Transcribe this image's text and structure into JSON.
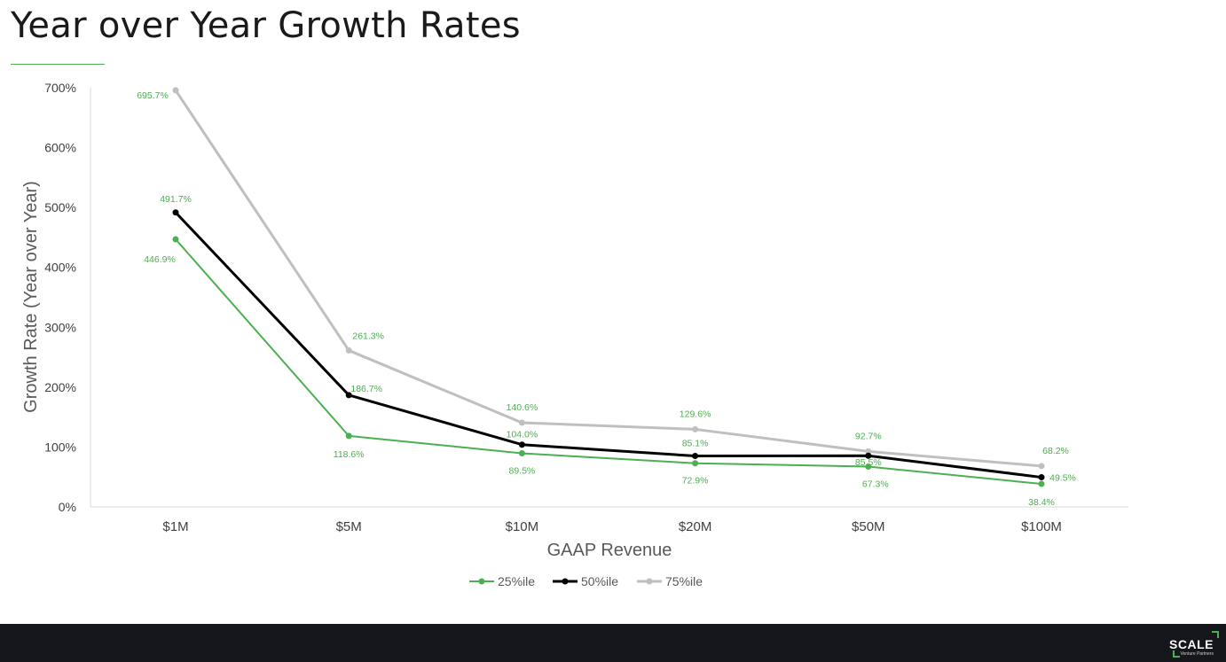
{
  "page": {
    "title": "Year over Year Growth Rates"
  },
  "chart_data": {
    "type": "line",
    "title": "",
    "xlabel": "GAAP Revenue",
    "ylabel": "Growth Rate (Year over Year)",
    "categories": [
      "$1M",
      "$5M",
      "$10M",
      "$20M",
      "$50M",
      "$100M"
    ],
    "ylim": [
      0,
      700
    ],
    "yticks": [
      0,
      100,
      200,
      300,
      400,
      500,
      600,
      700
    ],
    "ytick_labels": [
      "0%",
      "100%",
      "200%",
      "300%",
      "400%",
      "500%",
      "600%",
      "700%"
    ],
    "legend_position": "bottom",
    "grid": false,
    "series": [
      {
        "name": "25%ile",
        "color": "#4caf50",
        "values": [
          446.9,
          118.6,
          89.5,
          72.9,
          67.3,
          38.4
        ],
        "labels": [
          "446.9%",
          "118.6%",
          "89.5%",
          "72.9%",
          "67.3%",
          "38.4%"
        ]
      },
      {
        "name": "50%ile",
        "color": "#000000",
        "values": [
          491.7,
          186.7,
          104.0,
          85.1,
          85.5,
          49.5
        ],
        "labels": [
          "491.7%",
          "186.7%",
          "104.0%",
          "85.1%",
          "85.5%",
          "49.5%"
        ]
      },
      {
        "name": "75%ile",
        "color": "#bfbfbf",
        "values": [
          695.7,
          261.3,
          140.6,
          129.6,
          92.7,
          68.2
        ],
        "labels": [
          "695.7%",
          "261.3%",
          "140.6%",
          "129.6%",
          "92.7%",
          "68.2%"
        ]
      }
    ],
    "label_color": "#4caf50"
  },
  "footer": {
    "logo_text": "SCALE",
    "logo_sub": "Venture Partners"
  }
}
